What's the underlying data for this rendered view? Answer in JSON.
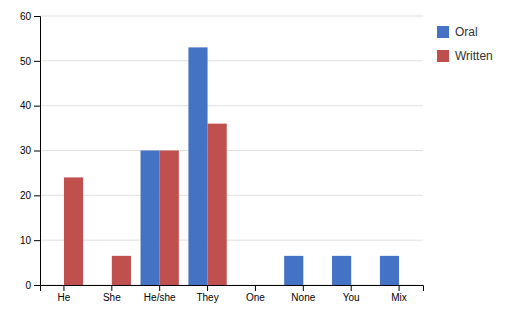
{
  "chart_data": {
    "type": "bar",
    "categories": [
      "He",
      "She",
      "He/she",
      "They",
      "One",
      "None",
      "You",
      "Mix"
    ],
    "series": [
      {
        "name": "Oral",
        "color": "#4472C4",
        "values": [
          0,
          0,
          30,
          53,
          0,
          6.5,
          6.5,
          6.5
        ]
      },
      {
        "name": "Written",
        "color": "#C0504D",
        "values": [
          24,
          6.5,
          30,
          36,
          0,
          0,
          0,
          0
        ]
      }
    ],
    "ylim": [
      0,
      60
    ],
    "yticks": [
      0,
      10,
      20,
      30,
      40,
      50,
      60
    ],
    "grid": true,
    "legend": "right"
  }
}
